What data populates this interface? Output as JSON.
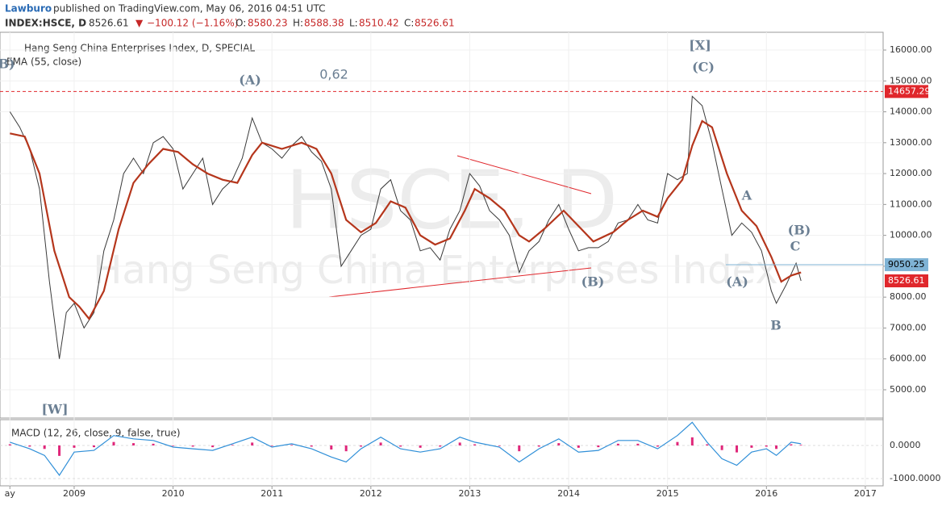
{
  "header": {
    "author": "Lawburo",
    "published": "published on TradingView.com, May 06, 2016 04:51 UTC",
    "symbol": "INDEX:HSCE, D",
    "last": "8526.61",
    "arrow": "▼",
    "change": "−100.12 (−1.16%)",
    "o_label": "O:",
    "o": "8580.23",
    "h_label": "H:",
    "h": "8588.38",
    "l_label": "L:",
    "l": "8510.42",
    "c_label": "C:",
    "c": "8526.61"
  },
  "chart_data": {
    "type": "line",
    "title": "Hang Seng China Enterprises Index, D, SPECIAL",
    "watermark": "HSCE, D",
    "watermark_name": "Hang Seng China Enterprises Index",
    "xlim": [
      2008.25,
      2017.18
    ],
    "ylim": [
      4085,
      16575
    ],
    "xticks": [
      {
        "value": 2008.35,
        "label": "ay"
      },
      2009,
      2010,
      2011,
      2012,
      2013,
      2014,
      2015,
      2016,
      2017
    ],
    "yticks": [
      {
        "value": 5000,
        "label": "5000.00"
      },
      {
        "value": 6000,
        "label": "6000.00"
      },
      {
        "value": 7000,
        "label": "7000.00"
      },
      {
        "value": 8000,
        "label": "8000.00"
      },
      {
        "value": 9000,
        "label": "9000.00"
      },
      {
        "value": 10000,
        "label": "10000.00"
      },
      {
        "value": 11000,
        "label": "11000.00"
      },
      {
        "value": 12000,
        "label": "12000.00"
      },
      {
        "value": 13000,
        "label": "13000.00"
      },
      {
        "value": 14000,
        "label": "14000.00"
      },
      {
        "value": 15000,
        "label": "15000.00"
      },
      {
        "value": 16000,
        "label": "16000.00"
      }
    ],
    "series": [
      {
        "name": "INDEX:HSCE",
        "color": "#3a3a3a",
        "x": [
          2008.35,
          2008.45,
          2008.55,
          2008.65,
          2008.75,
          2008.85,
          2008.92,
          2009.0,
          2009.1,
          2009.2,
          2009.3,
          2009.4,
          2009.5,
          2009.6,
          2009.7,
          2009.8,
          2009.9,
          2010.0,
          2010.1,
          2010.2,
          2010.3,
          2010.4,
          2010.5,
          2010.6,
          2010.7,
          2010.8,
          2010.9,
          2011.0,
          2011.1,
          2011.2,
          2011.3,
          2011.4,
          2011.5,
          2011.6,
          2011.7,
          2011.8,
          2011.9,
          2012.0,
          2012.1,
          2012.2,
          2012.3,
          2012.4,
          2012.5,
          2012.6,
          2012.7,
          2012.8,
          2012.9,
          2013.0,
          2013.1,
          2013.2,
          2013.3,
          2013.4,
          2013.5,
          2013.6,
          2013.7,
          2013.8,
          2013.9,
          2014.0,
          2014.1,
          2014.2,
          2014.3,
          2014.4,
          2014.5,
          2014.6,
          2014.7,
          2014.8,
          2014.9,
          2015.0,
          2015.1,
          2015.2,
          2015.25,
          2015.35,
          2015.45,
          2015.55,
          2015.65,
          2015.75,
          2015.85,
          2015.95,
          2016.05,
          2016.1,
          2016.2,
          2016.3,
          2016.35
        ],
        "values": [
          14000,
          13500,
          12800,
          11500,
          8500,
          6000,
          7500,
          7800,
          7000,
          7500,
          9500,
          10500,
          12000,
          12500,
          12000,
          13000,
          13200,
          12800,
          11500,
          12000,
          12500,
          11000,
          11500,
          11800,
          12500,
          13800,
          13000,
          12800,
          12500,
          12900,
          13200,
          12700,
          12400,
          11500,
          9000,
          9500,
          10000,
          10200,
          11500,
          11800,
          10800,
          10500,
          9500,
          9600,
          9200,
          10200,
          10800,
          12000,
          11600,
          10800,
          10500,
          10000,
          8800,
          9500,
          9800,
          10500,
          11000,
          10200,
          9500,
          9600,
          9600,
          9800,
          10400,
          10500,
          11000,
          10500,
          10400,
          12000,
          11800,
          12000,
          14500,
          14200,
          13000,
          11500,
          10000,
          10400,
          10100,
          9500,
          8200,
          7800,
          8400,
          9100,
          8527
        ]
      },
      {
        "name": "EMA (55, close)",
        "color": "#b5361c",
        "x": [
          2008.35,
          2008.5,
          2008.65,
          2008.8,
          2008.95,
          2009.05,
          2009.15,
          2009.3,
          2009.45,
          2009.6,
          2009.75,
          2009.9,
          2010.05,
          2010.2,
          2010.35,
          2010.5,
          2010.65,
          2010.8,
          2010.9,
          2011.1,
          2011.3,
          2011.45,
          2011.6,
          2011.75,
          2011.9,
          2012.05,
          2012.2,
          2012.35,
          2012.5,
          2012.65,
          2012.8,
          2012.95,
          2013.05,
          2013.2,
          2013.35,
          2013.5,
          2013.6,
          2013.75,
          2013.95,
          2014.1,
          2014.25,
          2014.45,
          2014.6,
          2014.75,
          2014.9,
          2015.0,
          2015.15,
          2015.25,
          2015.35,
          2015.45,
          2015.6,
          2015.75,
          2015.9,
          2016.05,
          2016.15,
          2016.25,
          2016.35
        ],
        "values": [
          13300,
          13200,
          12000,
          9500,
          8000,
          7700,
          7300,
          8200,
          10200,
          11700,
          12300,
          12800,
          12700,
          12300,
          12000,
          11800,
          11700,
          12600,
          13000,
          12800,
          13000,
          12800,
          12000,
          10500,
          10100,
          10400,
          11100,
          10900,
          10000,
          9700,
          9900,
          10800,
          11500,
          11200,
          10800,
          10000,
          9800,
          10200,
          10800,
          10300,
          9800,
          10100,
          10500,
          10800,
          10600,
          11200,
          11800,
          12900,
          13700,
          13500,
          12000,
          10800,
          10300,
          9300,
          8500,
          8700,
          8800
        ]
      }
    ],
    "price_lines": [
      {
        "value": 14657.29,
        "color": "#e0272c"
      },
      {
        "value": 9050.25,
        "color": "#7fb3d5"
      },
      {
        "value": 8526.61,
        "color": "#e0272c"
      }
    ],
    "annotations": [
      "B)",
      "(A)",
      "0,62",
      "[X]",
      "(C)",
      "A",
      "(B)",
      "C",
      "(A)",
      "(B)",
      "B",
      "[W]"
    ],
    "macd": {
      "title": "MACD (12, 26, close, 9, false, true)",
      "y2lim": [
        -1220,
        780
      ],
      "y2ticks": [
        {
          "value": 0,
          "label": "0.0000"
        },
        {
          "value": -1000,
          "label": "-1000.0000"
        }
      ],
      "series": [
        {
          "name": "MACD",
          "color": "#2f8fd8",
          "x": [
            2008.35,
            2008.55,
            2008.7,
            2008.85,
            2009.0,
            2009.2,
            2009.4,
            2009.6,
            2009.8,
            2010.0,
            2010.2,
            2010.4,
            2010.6,
            2010.8,
            2011.0,
            2011.2,
            2011.4,
            2011.6,
            2011.75,
            2011.9,
            2012.1,
            2012.3,
            2012.5,
            2012.7,
            2012.9,
            2013.05,
            2013.3,
            2013.5,
            2013.7,
            2013.9,
            2014.1,
            2014.3,
            2014.5,
            2014.7,
            2014.9,
            2015.1,
            2015.25,
            2015.4,
            2015.55,
            2015.7,
            2015.85,
            2016.0,
            2016.1,
            2016.25,
            2016.35
          ],
          "values": [
            100,
            -100,
            -300,
            -900,
            -200,
            -150,
            300,
            200,
            150,
            -50,
            -100,
            -150,
            50,
            250,
            -50,
            50,
            -100,
            -350,
            -500,
            -100,
            250,
            -100,
            -200,
            -100,
            250,
            100,
            -50,
            -500,
            -100,
            200,
            -200,
            -150,
            150,
            150,
            -100,
            300,
            700,
            100,
            -400,
            -600,
            -200,
            -100,
            -300,
            100,
            50
          ]
        }
      ]
    }
  }
}
